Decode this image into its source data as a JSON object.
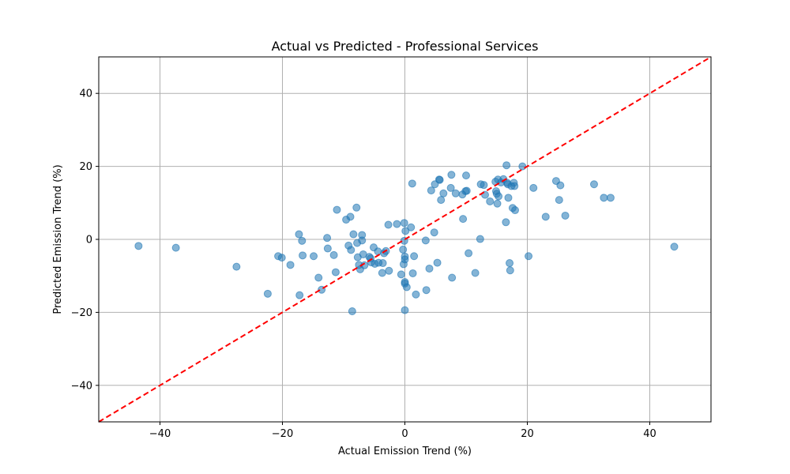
{
  "chart_data": {
    "type": "scatter",
    "title": "Actual vs Predicted - Professional Services",
    "xlabel": "Actual Emission Trend (%)",
    "ylabel": "Predicted Emission Trend (%)",
    "xlim": [
      -50,
      50
    ],
    "ylim": [
      -50,
      50
    ],
    "xticks": [
      -40,
      -20,
      0,
      20,
      40
    ],
    "yticks": [
      -40,
      -20,
      0,
      20,
      40
    ],
    "tick_labels_x": [
      "−40",
      "−20",
      "0",
      "20",
      "40"
    ],
    "tick_labels_y": [
      "−40",
      "−20",
      "0",
      "20",
      "40"
    ],
    "grid": true,
    "point_color": "#1f77b4",
    "reference_line": {
      "from": [
        -50,
        -50
      ],
      "to": [
        50,
        50
      ],
      "color": "#ff0000",
      "style": "dashed"
    },
    "points": [
      [
        -43.5,
        -1.8
      ],
      [
        -37.4,
        -2.3
      ],
      [
        -27.5,
        -7.5
      ],
      [
        -22.4,
        -14.9
      ],
      [
        -20.7,
        -4.6
      ],
      [
        -20.1,
        -5.0
      ],
      [
        -18.7,
        -7.0
      ],
      [
        -17.3,
        1.4
      ],
      [
        -17.2,
        -15.3
      ],
      [
        -16.8,
        -0.4
      ],
      [
        -16.7,
        -4.4
      ],
      [
        -14.9,
        -4.6
      ],
      [
        -14.1,
        -10.5
      ],
      [
        -13.6,
        -13.8
      ],
      [
        -12.7,
        0.4
      ],
      [
        -12.6,
        -2.5
      ],
      [
        -11.6,
        -4.3
      ],
      [
        -11.3,
        -9.0
      ],
      [
        -11.1,
        8.1
      ],
      [
        -9.6,
        5.4
      ],
      [
        -9.2,
        -1.7
      ],
      [
        -8.9,
        6.2
      ],
      [
        -8.8,
        -2.9
      ],
      [
        -8.6,
        -19.7
      ],
      [
        -8.4,
        1.4
      ],
      [
        -7.9,
        8.7
      ],
      [
        -7.8,
        -1.0
      ],
      [
        -7.7,
        -4.9
      ],
      [
        -7.5,
        -7.0
      ],
      [
        -7.3,
        -8.2
      ],
      [
        -7.0,
        1.2
      ],
      [
        -7.0,
        -0.3
      ],
      [
        -6.8,
        -4.1
      ],
      [
        -6.6,
        -7.1
      ],
      [
        -5.8,
        -4.8
      ],
      [
        -5.6,
        -5.2
      ],
      [
        -5.5,
        -6.3
      ],
      [
        -5.1,
        -2.2
      ],
      [
        -4.9,
        -6.7
      ],
      [
        -4.4,
        -3.3
      ],
      [
        -4.3,
        -6.4
      ],
      [
        -3.7,
        -9.2
      ],
      [
        -3.6,
        -6.5
      ],
      [
        -3.4,
        -3.8
      ],
      [
        -3.1,
        -3.2
      ],
      [
        -2.7,
        4.0
      ],
      [
        -2.6,
        -8.6
      ],
      [
        -1.3,
        4.2
      ],
      [
        -0.6,
        -9.6
      ],
      [
        -0.3,
        -2.8
      ],
      [
        -0.2,
        -6.8
      ],
      [
        -0.1,
        -0.4
      ],
      [
        -0.1,
        4.5
      ],
      [
        0.0,
        -11.7
      ],
      [
        0.0,
        -12.1
      ],
      [
        0.0,
        -19.4
      ],
      [
        0.0,
        -4.7
      ],
      [
        0.0,
        -5.5
      ],
      [
        0.1,
        2.3
      ],
      [
        0.3,
        -13.1
      ],
      [
        1.0,
        3.3
      ],
      [
        1.2,
        15.3
      ],
      [
        1.3,
        -9.3
      ],
      [
        1.5,
        -4.6
      ],
      [
        1.8,
        -15.1
      ],
      [
        3.4,
        -0.3
      ],
      [
        3.5,
        -13.9
      ],
      [
        4.0,
        -8.0
      ],
      [
        4.3,
        13.4
      ],
      [
        4.8,
        1.9
      ],
      [
        4.9,
        15.1
      ],
      [
        5.3,
        -6.4
      ],
      [
        5.6,
        16.4
      ],
      [
        5.7,
        16.3
      ],
      [
        5.9,
        10.8
      ],
      [
        6.3,
        12.6
      ],
      [
        7.5,
        14.1
      ],
      [
        7.6,
        17.7
      ],
      [
        7.7,
        -10.5
      ],
      [
        8.3,
        12.6
      ],
      [
        9.4,
        12.3
      ],
      [
        9.5,
        5.6
      ],
      [
        9.9,
        13.2
      ],
      [
        10.0,
        17.5
      ],
      [
        10.1,
        13.3
      ],
      [
        10.4,
        -3.8
      ],
      [
        11.5,
        -9.2
      ],
      [
        12.3,
        0.1
      ],
      [
        12.4,
        15.1
      ],
      [
        12.9,
        14.9
      ],
      [
        13.1,
        12.2
      ],
      [
        13.9,
        10.4
      ],
      [
        14.8,
        15.8
      ],
      [
        14.9,
        13.2
      ],
      [
        15.0,
        12.5
      ],
      [
        15.1,
        9.8
      ],
      [
        15.2,
        16.4
      ],
      [
        15.3,
        11.8
      ],
      [
        15.7,
        15.6
      ],
      [
        16.1,
        16.5
      ],
      [
        16.5,
        4.7
      ],
      [
        16.6,
        20.3
      ],
      [
        16.7,
        15.5
      ],
      [
        16.8,
        15.1
      ],
      [
        16.9,
        11.4
      ],
      [
        17.1,
        -6.5
      ],
      [
        17.2,
        -8.5
      ],
      [
        17.4,
        14.6
      ],
      [
        17.6,
        8.6
      ],
      [
        17.8,
        15.5
      ],
      [
        17.9,
        14.6
      ],
      [
        18.0,
        8.0
      ],
      [
        19.2,
        20.0
      ],
      [
        20.2,
        -4.6
      ],
      [
        21.0,
        14.1
      ],
      [
        23.0,
        6.2
      ],
      [
        24.7,
        16.0
      ],
      [
        25.2,
        10.8
      ],
      [
        25.4,
        14.8
      ],
      [
        26.2,
        6.5
      ],
      [
        30.9,
        15.1
      ],
      [
        32.5,
        11.4
      ],
      [
        33.6,
        11.4
      ],
      [
        44.0,
        -2.0
      ]
    ]
  }
}
